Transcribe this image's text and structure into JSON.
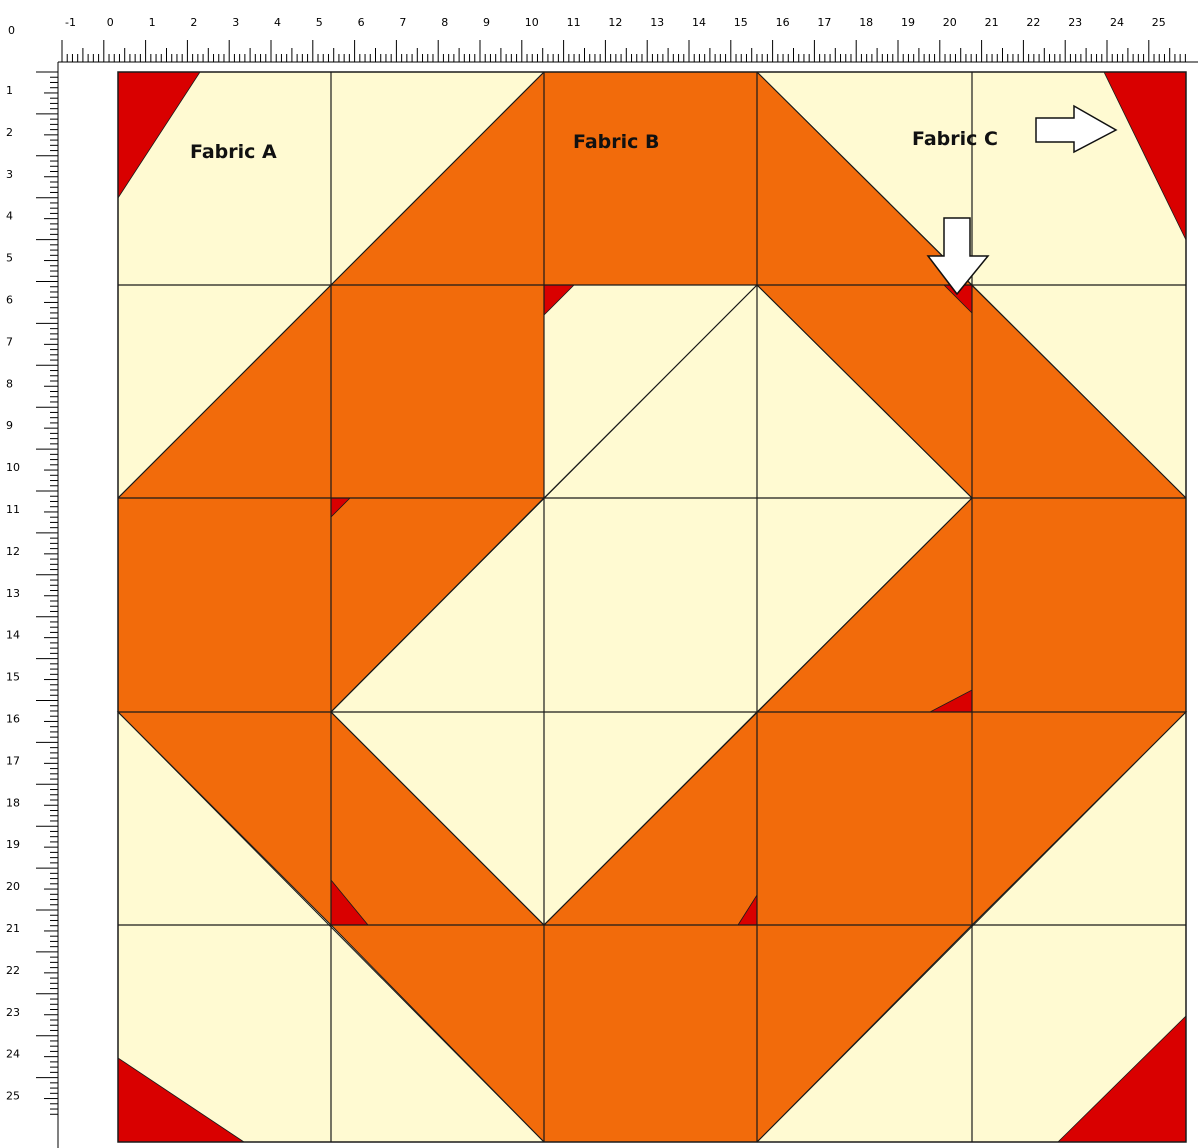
{
  "ruler": {
    "top_labels": [
      "-1",
      "0",
      "1",
      "2",
      "3",
      "4",
      "5",
      "6",
      "7",
      "8",
      "9",
      "10",
      "11",
      "12",
      "13",
      "14",
      "15",
      "16",
      "17",
      "18",
      "19",
      "20",
      "21",
      "22",
      "23",
      "24",
      "25"
    ],
    "left_labels": [
      "0",
      "1",
      "2",
      "3",
      "4",
      "5",
      "6",
      "7",
      "8",
      "9",
      "10",
      "11",
      "12",
      "13",
      "14",
      "15",
      "16",
      "17",
      "18",
      "19",
      "20",
      "21",
      "22",
      "23",
      "24",
      "25"
    ]
  },
  "labels": {
    "fabric_a": "Fabric A",
    "fabric_b": "Fabric B",
    "fabric_c": "Fabric C"
  },
  "colors": {
    "fabric_a": "#FFFAD2",
    "fabric_b": "#F26B0B",
    "fabric_c": "#D90000",
    "grid": "#1a1a1a"
  }
}
